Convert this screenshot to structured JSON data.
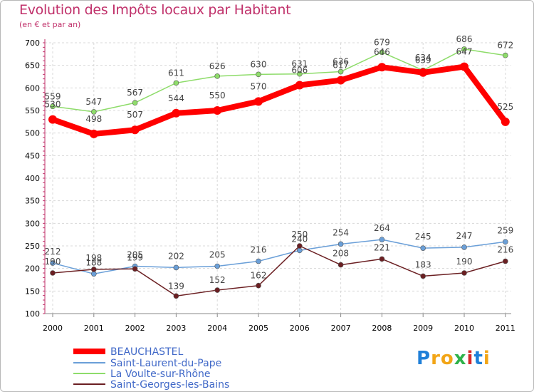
{
  "chart_data": {
    "type": "line",
    "title": "Evolution des Impôts locaux par Habitant",
    "subtitle": "(en € et par an)",
    "x": [
      "2000",
      "2001",
      "2002",
      "2003",
      "2004",
      "2005",
      "2006",
      "2007",
      "2008",
      "2009",
      "2010",
      "2011"
    ],
    "ylim": [
      100,
      700
    ],
    "yticks": [
      100,
      150,
      200,
      250,
      300,
      350,
      400,
      450,
      500,
      550,
      600,
      650,
      700
    ],
    "ytick_labels": [
      "100",
      "150",
      "200",
      "250",
      "300",
      "350",
      "400",
      "450",
      "500",
      "550",
      "600",
      "650",
      "700"
    ],
    "grid": true,
    "legend_position": "bottom-left",
    "series": [
      {
        "name": "BEAUCHASTEL",
        "color": "#ff0000",
        "values": [
          530,
          498,
          507,
          544,
          550,
          570,
          606,
          617,
          646,
          634,
          647,
          525
        ],
        "labels": [
          "530",
          "498",
          "507",
          "544",
          "550",
          "570",
          "606",
          "617",
          "646",
          "634",
          "647",
          "525"
        ]
      },
      {
        "name": "Saint-Laurent-du-Pape",
        "color": "#6a9fd8",
        "values": [
          212,
          188,
          205,
          202,
          205,
          216,
          240,
          254,
          264,
          245,
          247,
          259
        ],
        "labels": [
          "212",
          "188",
          "205",
          "202",
          "205",
          "216",
          "240",
          "254",
          "264",
          "245",
          "247",
          "259"
        ]
      },
      {
        "name": "La Voulte-sur-Rhône",
        "color": "#8edc6a",
        "values": [
          559,
          547,
          567,
          611,
          626,
          630,
          631,
          636,
          679,
          639,
          686,
          672
        ],
        "labels": [
          "559",
          "547",
          "567",
          "611",
          "626",
          "630",
          "631",
          "636",
          "679",
          "639",
          "686",
          "672"
        ]
      },
      {
        "name": "Saint-Georges-les-Bains",
        "color": "#6b1f22",
        "values": [
          190,
          198,
          199,
          139,
          152,
          162,
          250,
          208,
          221,
          183,
          190,
          216
        ],
        "labels": [
          "190",
          "198",
          "199",
          "139",
          "152",
          "162",
          "250",
          "208",
          "221",
          "183",
          "190",
          "216"
        ]
      }
    ]
  },
  "logo": {
    "letters": [
      "P",
      "r",
      "o",
      "x",
      "i",
      "t",
      "i"
    ],
    "colors": [
      "#1f7fd8",
      "#f2a516",
      "#f2a516",
      "#2fb24a",
      "#d8262a",
      "#1f7fd8",
      "#f2a516"
    ]
  }
}
